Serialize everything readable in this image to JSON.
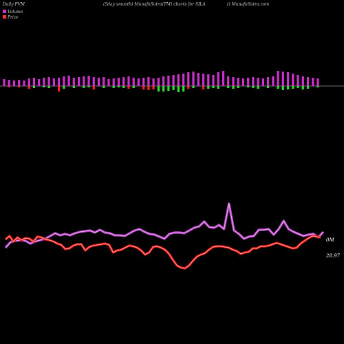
{
  "header": {
    "left": "Daily PVM",
    "center": "(5day smooth) MunafaSutra(TM) charts for SILA",
    "right": "() MunafaSutra.com"
  },
  "chart_data": {
    "type": "line",
    "legend": {
      "placement": "top-left",
      "entries": [
        {
          "name": "Volume",
          "color": "#cc33cc"
        },
        {
          "name": "Price",
          "color": "#ff3333"
        }
      ]
    },
    "series": [
      {
        "name": "Volume",
        "color": "#cc33cc",
        "end_label": "0M",
        "values": [
          20,
          28,
          30,
          31,
          30,
          26,
          29,
          31,
          33,
          37,
          41,
          38,
          40,
          38,
          41,
          43,
          44,
          45,
          42,
          46,
          42,
          41,
          38,
          38,
          37,
          41,
          45,
          47,
          43,
          40,
          39,
          36,
          33,
          40,
          42,
          42,
          41,
          45,
          49,
          51,
          58,
          50,
          49,
          53,
          47,
          84,
          45,
          40,
          33,
          36,
          37,
          46,
          46,
          47,
          39,
          47,
          59,
          47,
          43,
          40,
          37,
          39,
          40,
          35,
          43
        ]
      },
      {
        "name": "Price",
        "color": "#ff3333",
        "end_label": "28.97",
        "values": [
          28.2,
          28.7,
          27.9,
          28.5,
          28.1,
          28.4,
          28.3,
          27.9,
          28.6,
          28.5,
          28.2,
          28.1,
          27.9,
          27.6,
          27.4,
          26.8,
          26.9,
          27.3,
          27.5,
          27.5,
          26.6,
          27.1,
          27.3,
          27.4,
          27.5,
          27.6,
          27.4,
          26.3,
          26.6,
          26.7,
          27.0,
          27.3,
          27.2,
          27.0,
          26.6,
          26.0,
          26.3,
          27.1,
          27.2,
          27.0,
          26.7,
          26.1,
          25.2,
          24.4,
          24.1,
          24.0,
          24.4,
          25.1,
          25.7,
          26.0,
          26.2,
          26.7,
          27.1,
          27.2,
          27.2,
          27.1,
          27.0,
          26.7,
          26.5,
          26.1,
          26.3,
          26.4,
          26.9,
          26.9,
          27.2,
          27.2,
          27.3,
          27.5,
          27.7,
          27.5,
          27.3,
          27.1,
          26.9,
          27.0,
          27.6,
          28.0,
          28.4,
          28.7,
          28.6,
          28.5
        ]
      }
    ],
    "volume_bars": {
      "note_colors": {
        "up": "#cc33cc",
        "down_price": "#ff2222",
        "down_vol": "#33dd33"
      },
      "heights": [
        10,
        9,
        8,
        9,
        8,
        11,
        12,
        10,
        12,
        13,
        11,
        12,
        14,
        15,
        12,
        13,
        14,
        15,
        13,
        12,
        13,
        10,
        11,
        12,
        13,
        14,
        12,
        11,
        12,
        13,
        11,
        12,
        14,
        15,
        16,
        17,
        18,
        20,
        21,
        19,
        18,
        17,
        16,
        20,
        22,
        14,
        13,
        12,
        11,
        12,
        13,
        12,
        11,
        13,
        14,
        22,
        21,
        20,
        18,
        16,
        14,
        13,
        12,
        11
      ],
      "below": [
        0,
        2,
        0,
        2,
        0,
        4,
        3,
        0,
        2,
        3,
        0,
        8,
        4,
        0,
        3,
        0,
        3,
        2,
        5,
        0,
        3,
        0,
        3,
        2,
        3,
        4,
        3,
        0,
        5,
        6,
        5,
        8,
        8,
        7,
        6,
        9,
        8,
        4,
        3,
        0,
        5,
        4,
        3,
        4,
        0,
        3,
        4,
        3,
        0,
        2,
        3,
        4,
        0,
        3,
        0,
        4,
        6,
        5,
        4,
        3,
        5,
        4,
        0,
        2
      ],
      "below_color": [
        "",
        "#ff2222",
        "",
        "#ff2222",
        "",
        "#ff2222",
        "#33dd33",
        "",
        "#33dd33",
        "#33dd33",
        "",
        "#ff2222",
        "#33dd33",
        "",
        "#33dd33",
        "",
        "#33dd33",
        "#33dd33",
        "#ff2222",
        "",
        "#33dd33",
        "",
        "#33dd33",
        "#33dd33",
        "#33dd33",
        "#ff2222",
        "#33dd33",
        "",
        "#ff2222",
        "#ff2222",
        "#ff2222",
        "#33dd33",
        "#33dd33",
        "#33dd33",
        "#33dd33",
        "#33dd33",
        "#33dd33",
        "#ff2222",
        "#33dd33",
        "",
        "#ff2222",
        "#33dd33",
        "#33dd33",
        "#33dd33",
        "",
        "#33dd33",
        "#33dd33",
        "#33dd33",
        "",
        "#33dd33",
        "#33dd33",
        "#33dd33",
        "",
        "#33dd33",
        "",
        "#33dd33",
        "#33dd33",
        "#33dd33",
        "#33dd33",
        "#33dd33",
        "#33dd33",
        "#33dd33",
        "",
        "#33dd33"
      ]
    }
  }
}
